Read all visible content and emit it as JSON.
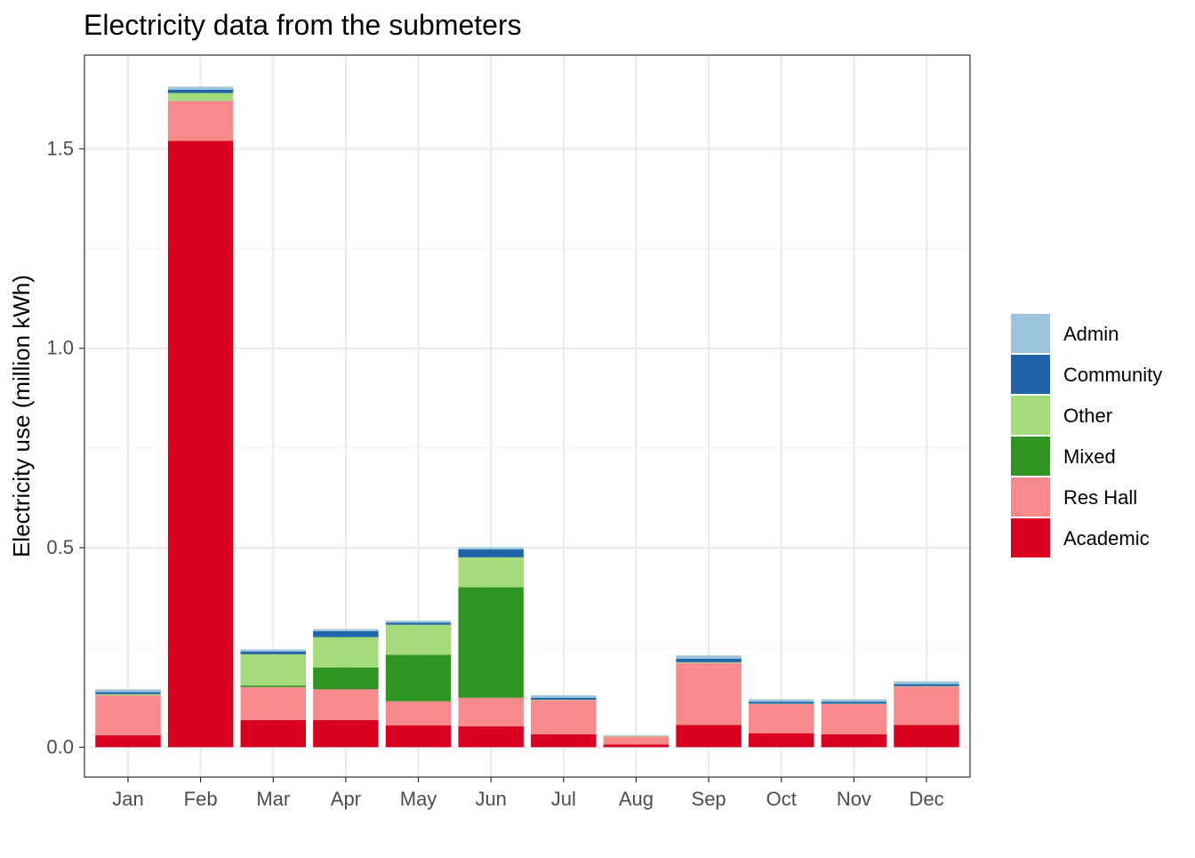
{
  "chart_data": {
    "type": "bar",
    "stacked": true,
    "title": "Electricity data from the submeters",
    "xlabel": "",
    "ylabel": "Electricity use (million kWh)",
    "ylim": [
      -0.075,
      1.735
    ],
    "yticks": [
      0.0,
      0.5,
      1.0,
      1.5
    ],
    "ytick_labels": [
      "0.0",
      "0.5",
      "1.0",
      "1.5"
    ],
    "categories": [
      "Jan",
      "Feb",
      "Mar",
      "Apr",
      "May",
      "Jun",
      "Jul",
      "Aug",
      "Sep",
      "Oct",
      "Nov",
      "Dec"
    ],
    "grid": true,
    "legend_position": "right",
    "series": [
      {
        "name": "Academic",
        "color": "#dc0020",
        "values": [
          0.03,
          1.52,
          0.068,
          0.068,
          0.055,
          0.052,
          0.032,
          0.007,
          0.056,
          0.035,
          0.032,
          0.056
        ]
      },
      {
        "name": "Res Hall",
        "color": "#f88a8b",
        "values": [
          0.1,
          0.1,
          0.083,
          0.077,
          0.06,
          0.072,
          0.086,
          0.02,
          0.155,
          0.073,
          0.076,
          0.096
        ]
      },
      {
        "name": "Mixed",
        "color": "#2f9622",
        "values": [
          0.0,
          0.0,
          0.004,
          0.055,
          0.117,
          0.277,
          0.0,
          0.0,
          0.0,
          0.0,
          0.0,
          0.0
        ]
      },
      {
        "name": "Other",
        "color": "#a6db7b",
        "values": [
          0.003,
          0.02,
          0.078,
          0.076,
          0.075,
          0.075,
          0.001,
          0.001,
          0.002,
          0.001,
          0.001,
          0.001
        ]
      },
      {
        "name": "Community",
        "color": "#1f63a8",
        "values": [
          0.005,
          0.008,
          0.007,
          0.015,
          0.005,
          0.02,
          0.005,
          0.0,
          0.009,
          0.005,
          0.005,
          0.005
        ]
      },
      {
        "name": "Admin",
        "color": "#9ac5dd",
        "values": [
          0.007,
          0.008,
          0.005,
          0.005,
          0.005,
          0.005,
          0.006,
          0.002,
          0.008,
          0.006,
          0.006,
          0.007
        ]
      }
    ],
    "legend_order": [
      "Admin",
      "Community",
      "Other",
      "Mixed",
      "Res Hall",
      "Academic"
    ]
  },
  "colors": {
    "panel_border": "#333333",
    "grid_major": "#ebebeb",
    "grid_minor": "#f5f5f5",
    "tick_text": "#4d4d4d",
    "background": "#ffffff"
  }
}
